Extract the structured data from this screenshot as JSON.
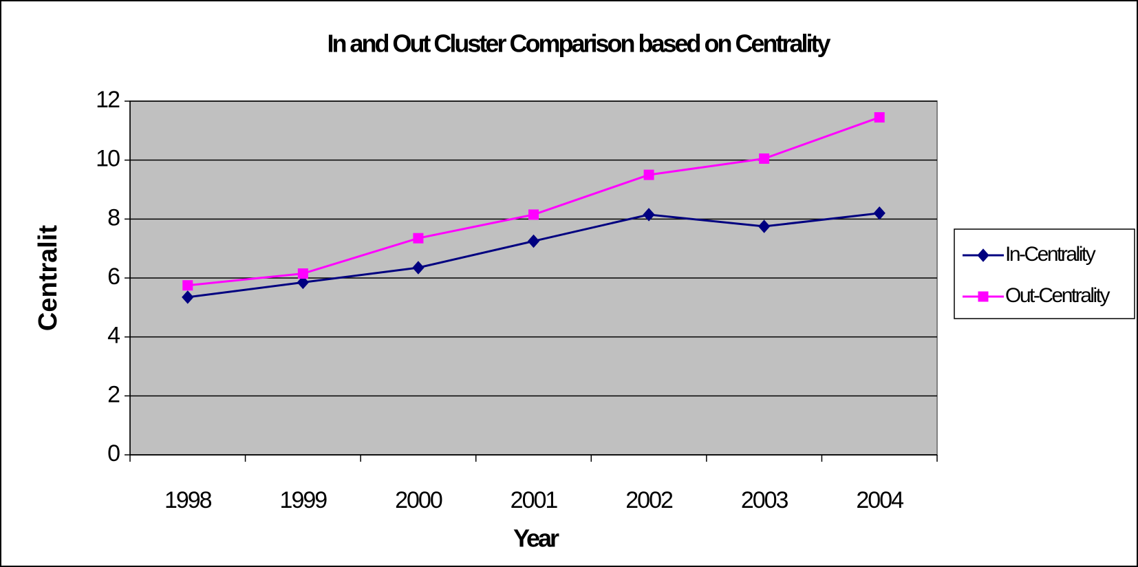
{
  "chart_data": {
    "type": "line",
    "title": "In and Out Cluster Comparison based on Centrality",
    "x_label": "Year",
    "y_label": "Centralit",
    "categories": [
      "1998",
      "1999",
      "2000",
      "2001",
      "2002",
      "2003",
      "2004"
    ],
    "series": [
      {
        "name": "In-Centrality",
        "color": "#000080",
        "marker": "diamond",
        "values": [
          5.35,
          5.85,
          6.35,
          7.25,
          8.15,
          7.75,
          8.2
        ]
      },
      {
        "name": "Out-Centrality",
        "color": "#ff00ff",
        "marker": "square",
        "values": [
          5.75,
          6.15,
          7.35,
          8.15,
          9.5,
          10.05,
          11.45
        ]
      }
    ],
    "ylim": [
      0,
      12
    ],
    "yticks": [
      0,
      2,
      4,
      6,
      8,
      10,
      12
    ],
    "grid": true,
    "legend": "right"
  }
}
